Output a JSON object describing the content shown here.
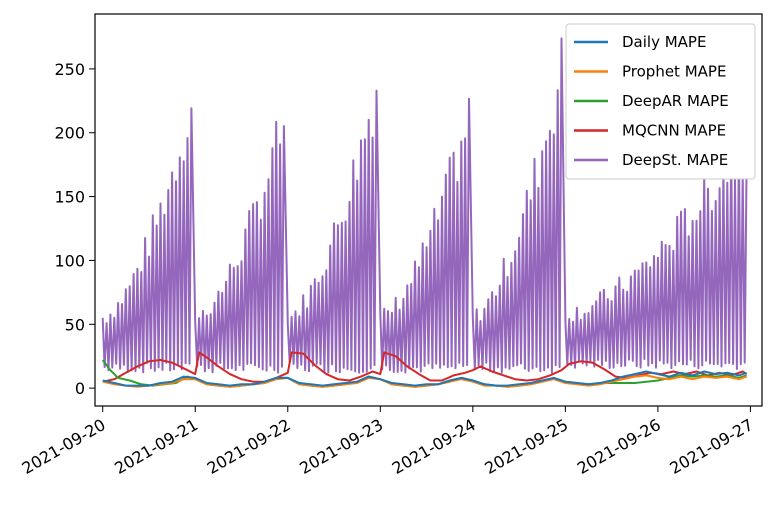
{
  "chart_data": {
    "type": "line",
    "title": "",
    "xlabel": "",
    "ylabel": "",
    "x_ticks": [
      "2021-09-20",
      "2021-09-21",
      "2021-09-22",
      "2021-09-23",
      "2021-09-24",
      "2021-09-25",
      "2021-09-26",
      "2021-09-27"
    ],
    "x_range": [
      "2021-09-19T22:00",
      "2021-09-27T03:00"
    ],
    "y_ticks": [
      0,
      50,
      100,
      150,
      200,
      250
    ],
    "ylim": [
      -14,
      293
    ],
    "grid": false,
    "legend_position": "top-right",
    "series": [
      {
        "name": "Daily MAPE",
        "color": "#1f77b4",
        "points": [
          [
            "2021-09-20T00:00",
            6
          ],
          [
            "2021-09-20T03:00",
            4
          ],
          [
            "2021-09-20T06:00",
            2
          ],
          [
            "2021-09-20T09:00",
            2
          ],
          [
            "2021-09-20T12:00",
            2
          ],
          [
            "2021-09-20T15:00",
            4
          ],
          [
            "2021-09-20T18:00",
            5
          ],
          [
            "2021-09-20T21:00",
            9
          ],
          [
            "2021-09-21T00:00",
            8
          ],
          [
            "2021-09-21T03:00",
            4
          ],
          [
            "2021-09-21T06:00",
            3
          ],
          [
            "2021-09-21T09:00",
            2
          ],
          [
            "2021-09-21T12:00",
            3
          ],
          [
            "2021-09-21T15:00",
            3
          ],
          [
            "2021-09-21T18:00",
            5
          ],
          [
            "2021-09-21T21:00",
            8
          ],
          [
            "2021-09-22T00:00",
            8
          ],
          [
            "2021-09-22T03:00",
            4
          ],
          [
            "2021-09-22T06:00",
            3
          ],
          [
            "2021-09-22T09:00",
            2
          ],
          [
            "2021-09-22T12:00",
            3
          ],
          [
            "2021-09-22T15:00",
            4
          ],
          [
            "2021-09-22T18:00",
            5
          ],
          [
            "2021-09-22T21:00",
            9
          ],
          [
            "2021-09-23T00:00",
            7
          ],
          [
            "2021-09-23T03:00",
            4
          ],
          [
            "2021-09-23T06:00",
            3
          ],
          [
            "2021-09-23T09:00",
            2
          ],
          [
            "2021-09-23T12:00",
            3
          ],
          [
            "2021-09-23T15:00",
            3
          ],
          [
            "2021-09-23T18:00",
            6
          ],
          [
            "2021-09-23T21:00",
            8
          ],
          [
            "2021-09-24T00:00",
            6
          ],
          [
            "2021-09-24T03:00",
            3
          ],
          [
            "2021-09-24T06:00",
            2
          ],
          [
            "2021-09-24T09:00",
            2
          ],
          [
            "2021-09-24T12:00",
            3
          ],
          [
            "2021-09-24T15:00",
            4
          ],
          [
            "2021-09-24T18:00",
            6
          ],
          [
            "2021-09-24T21:00",
            8
          ],
          [
            "2021-09-25T00:00",
            5
          ],
          [
            "2021-09-25T03:00",
            4
          ],
          [
            "2021-09-25T06:00",
            3
          ],
          [
            "2021-09-25T09:00",
            4
          ],
          [
            "2021-09-25T12:00",
            6
          ],
          [
            "2021-09-25T15:00",
            9
          ],
          [
            "2021-09-25T18:00",
            11
          ],
          [
            "2021-09-25T21:00",
            13
          ],
          [
            "2021-09-26T00:00",
            11
          ],
          [
            "2021-09-26T03:00",
            9
          ],
          [
            "2021-09-26T06:00",
            12
          ],
          [
            "2021-09-26T09:00",
            10
          ],
          [
            "2021-09-26T12:00",
            13
          ],
          [
            "2021-09-26T15:00",
            11
          ],
          [
            "2021-09-26T18:00",
            12
          ],
          [
            "2021-09-26T21:00",
            10
          ],
          [
            "2021-09-26T23:00",
            12
          ]
        ]
      },
      {
        "name": "Prophet MAPE",
        "color": "#ff7f0e",
        "points": [
          [
            "2021-09-20T00:00",
            5
          ],
          [
            "2021-09-20T03:00",
            3
          ],
          [
            "2021-09-20T06:00",
            2
          ],
          [
            "2021-09-20T09:00",
            1
          ],
          [
            "2021-09-20T12:00",
            2
          ],
          [
            "2021-09-20T15:00",
            3
          ],
          [
            "2021-09-20T18:00",
            4
          ],
          [
            "2021-09-20T21:00",
            7
          ],
          [
            "2021-09-21T00:00",
            7
          ],
          [
            "2021-09-21T03:00",
            3
          ],
          [
            "2021-09-21T06:00",
            2
          ],
          [
            "2021-09-21T09:00",
            1
          ],
          [
            "2021-09-21T12:00",
            2
          ],
          [
            "2021-09-21T15:00",
            3
          ],
          [
            "2021-09-21T18:00",
            4
          ],
          [
            "2021-09-21T21:00",
            7
          ],
          [
            "2021-09-22T00:00",
            8
          ],
          [
            "2021-09-22T03:00",
            3
          ],
          [
            "2021-09-22T06:00",
            2
          ],
          [
            "2021-09-22T09:00",
            1
          ],
          [
            "2021-09-22T12:00",
            2
          ],
          [
            "2021-09-22T15:00",
            3
          ],
          [
            "2021-09-22T18:00",
            4
          ],
          [
            "2021-09-22T21:00",
            8
          ],
          [
            "2021-09-23T00:00",
            7
          ],
          [
            "2021-09-23T03:00",
            3
          ],
          [
            "2021-09-23T06:00",
            2
          ],
          [
            "2021-09-23T09:00",
            1
          ],
          [
            "2021-09-23T12:00",
            2
          ],
          [
            "2021-09-23T15:00",
            3
          ],
          [
            "2021-09-23T18:00",
            5
          ],
          [
            "2021-09-23T21:00",
            7
          ],
          [
            "2021-09-24T00:00",
            5
          ],
          [
            "2021-09-24T03:00",
            2
          ],
          [
            "2021-09-24T06:00",
            2
          ],
          [
            "2021-09-24T09:00",
            1
          ],
          [
            "2021-09-24T12:00",
            2
          ],
          [
            "2021-09-24T15:00",
            3
          ],
          [
            "2021-09-24T18:00",
            5
          ],
          [
            "2021-09-24T21:00",
            7
          ],
          [
            "2021-09-25T00:00",
            4
          ],
          [
            "2021-09-25T03:00",
            3
          ],
          [
            "2021-09-25T06:00",
            2
          ],
          [
            "2021-09-25T09:00",
            3
          ],
          [
            "2021-09-25T12:00",
            5
          ],
          [
            "2021-09-25T15:00",
            7
          ],
          [
            "2021-09-25T18:00",
            9
          ],
          [
            "2021-09-25T21:00",
            10
          ],
          [
            "2021-09-26T00:00",
            8
          ],
          [
            "2021-09-26T03:00",
            7
          ],
          [
            "2021-09-26T06:00",
            9
          ],
          [
            "2021-09-26T09:00",
            7
          ],
          [
            "2021-09-26T12:00",
            9
          ],
          [
            "2021-09-26T15:00",
            8
          ],
          [
            "2021-09-26T18:00",
            9
          ],
          [
            "2021-09-26T21:00",
            7
          ],
          [
            "2021-09-26T23:00",
            9
          ]
        ]
      },
      {
        "name": "DeepAR MAPE",
        "color": "#2ca02c",
        "points": [
          [
            "2021-09-20T00:00",
            22
          ],
          [
            "2021-09-20T02:00",
            14
          ],
          [
            "2021-09-20T04:00",
            8
          ],
          [
            "2021-09-20T07:00",
            6
          ],
          [
            "2021-09-20T10:00",
            3
          ],
          [
            "2021-09-20T13:00",
            2
          ],
          [
            "2021-09-20T16:00",
            3
          ],
          [
            "2021-09-20T19:00",
            4
          ],
          [
            "2021-09-20T22:00",
            9
          ],
          [
            "2021-09-21T00:00",
            7
          ],
          [
            "2021-09-21T03:00",
            3
          ],
          [
            "2021-09-21T06:00",
            2
          ],
          [
            "2021-09-21T09:00",
            1
          ],
          [
            "2021-09-21T12:00",
            2
          ],
          [
            "2021-09-21T15:00",
            3
          ],
          [
            "2021-09-21T18:00",
            4
          ],
          [
            "2021-09-21T21:00",
            8
          ],
          [
            "2021-09-22T00:00",
            8
          ],
          [
            "2021-09-22T03:00",
            3
          ],
          [
            "2021-09-22T06:00",
            2
          ],
          [
            "2021-09-22T09:00",
            1
          ],
          [
            "2021-09-22T12:00",
            2
          ],
          [
            "2021-09-22T15:00",
            3
          ],
          [
            "2021-09-22T18:00",
            5
          ],
          [
            "2021-09-22T21:00",
            9
          ],
          [
            "2021-09-23T00:00",
            7
          ],
          [
            "2021-09-23T03:00",
            3
          ],
          [
            "2021-09-23T06:00",
            2
          ],
          [
            "2021-09-23T09:00",
            1
          ],
          [
            "2021-09-23T12:00",
            2
          ],
          [
            "2021-09-23T15:00",
            3
          ],
          [
            "2021-09-23T18:00",
            5
          ],
          [
            "2021-09-23T21:00",
            8
          ],
          [
            "2021-09-24T00:00",
            6
          ],
          [
            "2021-09-24T03:00",
            3
          ],
          [
            "2021-09-24T06:00",
            2
          ],
          [
            "2021-09-24T09:00",
            1
          ],
          [
            "2021-09-24T12:00",
            2
          ],
          [
            "2021-09-24T15:00",
            3
          ],
          [
            "2021-09-24T18:00",
            5
          ],
          [
            "2021-09-24T21:00",
            8
          ],
          [
            "2021-09-25T00:00",
            5
          ],
          [
            "2021-09-25T03:00",
            4
          ],
          [
            "2021-09-25T06:00",
            3
          ],
          [
            "2021-09-25T09:00",
            4
          ],
          [
            "2021-09-25T12:00",
            4
          ],
          [
            "2021-09-25T15:00",
            4
          ],
          [
            "2021-09-25T18:00",
            4
          ],
          [
            "2021-09-25T21:00",
            5
          ],
          [
            "2021-09-26T00:00",
            6
          ],
          [
            "2021-09-26T03:00",
            8
          ],
          [
            "2021-09-26T06:00",
            10
          ],
          [
            "2021-09-26T09:00",
            9
          ],
          [
            "2021-09-26T12:00",
            10
          ],
          [
            "2021-09-26T15:00",
            9
          ],
          [
            "2021-09-26T18:00",
            10
          ],
          [
            "2021-09-26T21:00",
            8
          ],
          [
            "2021-09-26T23:00",
            10
          ]
        ]
      },
      {
        "name": "MQCNN MAPE",
        "color": "#d62728",
        "points": [
          [
            "2021-09-20T00:00",
            5
          ],
          [
            "2021-09-20T03:00",
            7
          ],
          [
            "2021-09-20T06:00",
            12
          ],
          [
            "2021-09-20T09:00",
            17
          ],
          [
            "2021-09-20T12:00",
            21
          ],
          [
            "2021-09-20T15:00",
            22
          ],
          [
            "2021-09-20T18:00",
            20
          ],
          [
            "2021-09-20T20:00",
            17
          ],
          [
            "2021-09-20T22:00",
            14
          ],
          [
            "2021-09-21T00:00",
            11
          ],
          [
            "2021-09-21T01:00",
            28
          ],
          [
            "2021-09-21T03:00",
            24
          ],
          [
            "2021-09-21T06:00",
            17
          ],
          [
            "2021-09-21T09:00",
            11
          ],
          [
            "2021-09-21T12:00",
            7
          ],
          [
            "2021-09-21T15:00",
            5
          ],
          [
            "2021-09-21T18:00",
            5
          ],
          [
            "2021-09-21T21:00",
            8
          ],
          [
            "2021-09-22T00:00",
            12
          ],
          [
            "2021-09-22T01:00",
            28
          ],
          [
            "2021-09-22T04:00",
            27
          ],
          [
            "2021-09-22T07:00",
            18
          ],
          [
            "2021-09-22T10:00",
            11
          ],
          [
            "2021-09-22T13:00",
            7
          ],
          [
            "2021-09-22T16:00",
            6
          ],
          [
            "2021-09-22T19:00",
            9
          ],
          [
            "2021-09-22T22:00",
            13
          ],
          [
            "2021-09-23T00:00",
            11
          ],
          [
            "2021-09-23T01:00",
            28
          ],
          [
            "2021-09-23T04:00",
            25
          ],
          [
            "2021-09-23T07:00",
            17
          ],
          [
            "2021-09-23T10:00",
            11
          ],
          [
            "2021-09-23T13:00",
            6
          ],
          [
            "2021-09-23T16:00",
            6
          ],
          [
            "2021-09-23T19:00",
            10
          ],
          [
            "2021-09-23T22:00",
            12
          ],
          [
            "2021-09-24T00:00",
            14
          ],
          [
            "2021-09-24T02:00",
            17
          ],
          [
            "2021-09-24T05:00",
            13
          ],
          [
            "2021-09-24T08:00",
            10
          ],
          [
            "2021-09-24T11:00",
            7
          ],
          [
            "2021-09-24T14:00",
            6
          ],
          [
            "2021-09-24T17:00",
            7
          ],
          [
            "2021-09-24T20:00",
            10
          ],
          [
            "2021-09-24T23:00",
            14
          ],
          [
            "2021-09-25T01:00",
            19
          ],
          [
            "2021-09-25T04:00",
            21
          ],
          [
            "2021-09-25T07:00",
            20
          ],
          [
            "2021-09-25T10:00",
            15
          ],
          [
            "2021-09-25T13:00",
            9
          ],
          [
            "2021-09-25T16:00",
            8
          ],
          [
            "2021-09-25T19:00",
            10
          ],
          [
            "2021-09-25T22:00",
            12
          ],
          [
            "2021-09-26T01:00",
            11
          ],
          [
            "2021-09-26T04:00",
            13
          ],
          [
            "2021-09-26T07:00",
            11
          ],
          [
            "2021-09-26T10:00",
            13
          ],
          [
            "2021-09-26T13:00",
            10
          ],
          [
            "2021-09-26T16:00",
            12
          ],
          [
            "2021-09-26T19:00",
            10
          ],
          [
            "2021-09-26T22:00",
            13
          ],
          [
            "2021-09-26T23:00",
            11
          ]
        ]
      },
      {
        "name": "DeepSt. MAPE",
        "color": "#9467bd",
        "hourly_series": true,
        "hourly_start": "2021-09-20T00:00",
        "hourly_step_minutes": 30,
        "peaks": [
          {
            "start": "2021-09-20T00:00",
            "end": "2021-09-20T23:00",
            "max": 248,
            "trough": 12
          },
          {
            "start": "2021-09-21T00:00",
            "end": "2021-09-21T23:00",
            "max": 234,
            "trough": 12
          },
          {
            "start": "2021-09-22T00:00",
            "end": "2021-09-22T23:00",
            "max": 265,
            "trough": 12
          },
          {
            "start": "2021-09-23T00:00",
            "end": "2021-09-23T23:00",
            "max": 238,
            "trough": 12
          },
          {
            "start": "2021-09-24T00:00",
            "end": "2021-09-24T23:00",
            "max": 280,
            "trough": 12
          },
          {
            "start": "2021-09-25T00:00",
            "end": "2021-09-26T23:00",
            "max": 220,
            "trough": 15
          }
        ]
      }
    ]
  }
}
